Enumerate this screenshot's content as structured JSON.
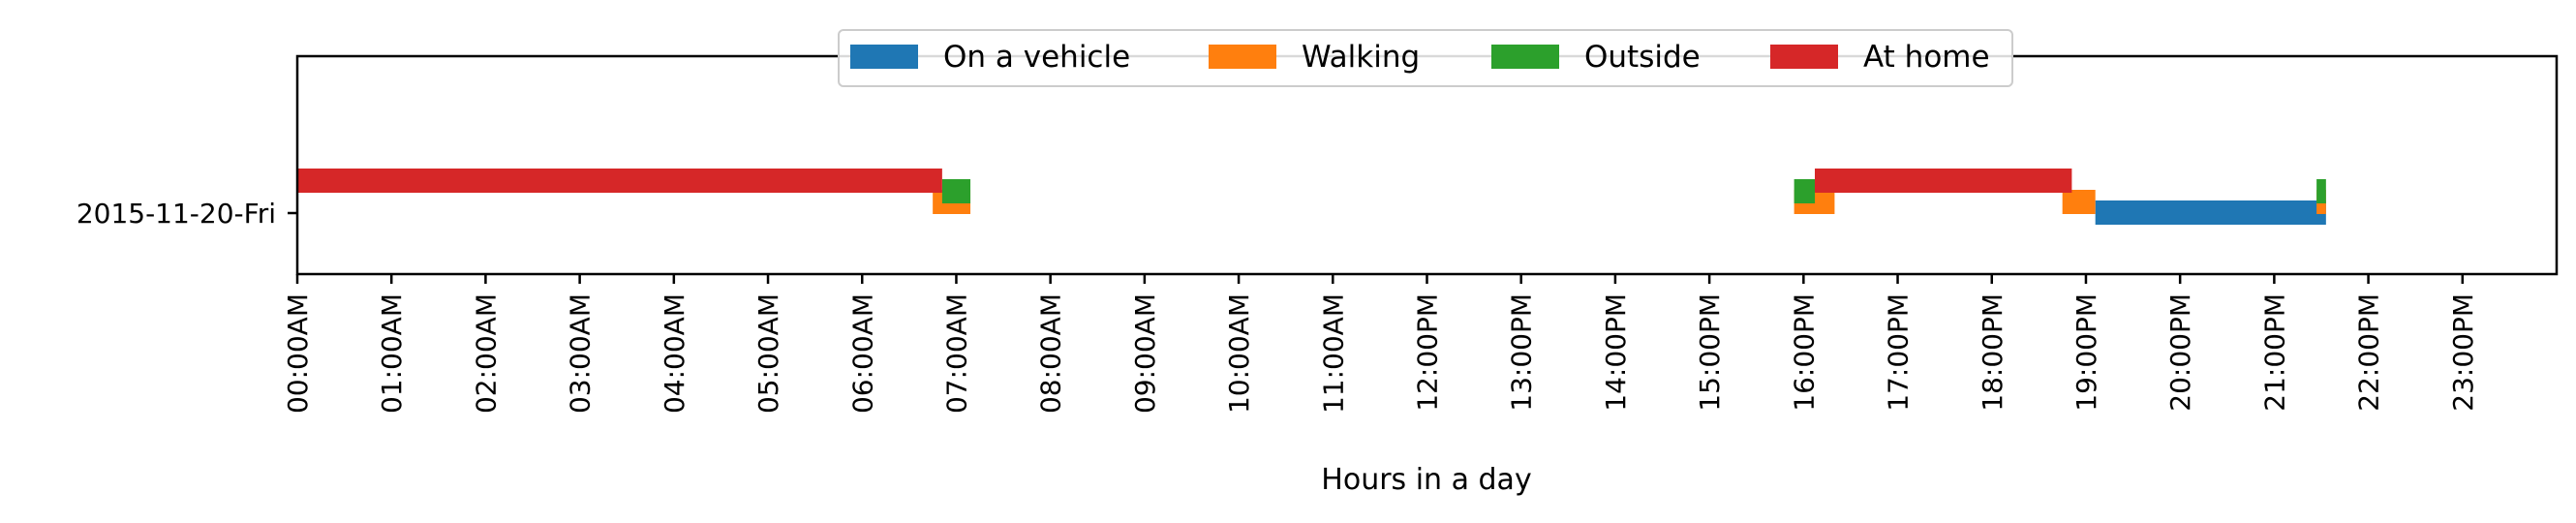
{
  "chart_data": {
    "type": "timeline",
    "title": "",
    "xlabel": "Hours in a day",
    "ylabel": "",
    "xlim": [
      0,
      24
    ],
    "grid": false,
    "legend_position": "top-center",
    "x_tick_labels": [
      "00:00AM",
      "01:00AM",
      "02:00AM",
      "03:00AM",
      "04:00AM",
      "05:00AM",
      "06:00AM",
      "07:00AM",
      "08:00AM",
      "09:00AM",
      "10:00AM",
      "11:00AM",
      "12:00PM",
      "13:00PM",
      "14:00PM",
      "15:00PM",
      "16:00PM",
      "17:00PM",
      "18:00PM",
      "19:00PM",
      "20:00PM",
      "21:00PM",
      "22:00PM",
      "23:00PM"
    ],
    "y_categories": [
      "2015-11-20-Fri"
    ],
    "series": [
      {
        "name": "On a vehicle",
        "color": "#1f77b4",
        "lane": 0,
        "intervals": [
          [
            19.1,
            21.55
          ]
        ]
      },
      {
        "name": "Walking",
        "color": "#ff7f0e",
        "lane": 1,
        "intervals": [
          [
            6.75,
            7.15
          ],
          [
            15.9,
            16.33
          ],
          [
            18.75,
            19.1
          ],
          [
            21.45,
            21.55
          ]
        ]
      },
      {
        "name": "Outside",
        "color": "#2ca02c",
        "lane": 2,
        "intervals": [
          [
            6.85,
            7.15
          ],
          [
            15.9,
            16.12
          ],
          [
            21.45,
            21.55
          ]
        ]
      },
      {
        "name": "At home",
        "color": "#d62728",
        "lane": 3,
        "intervals": [
          [
            0.0,
            6.85
          ],
          [
            16.12,
            18.85
          ]
        ]
      }
    ]
  }
}
